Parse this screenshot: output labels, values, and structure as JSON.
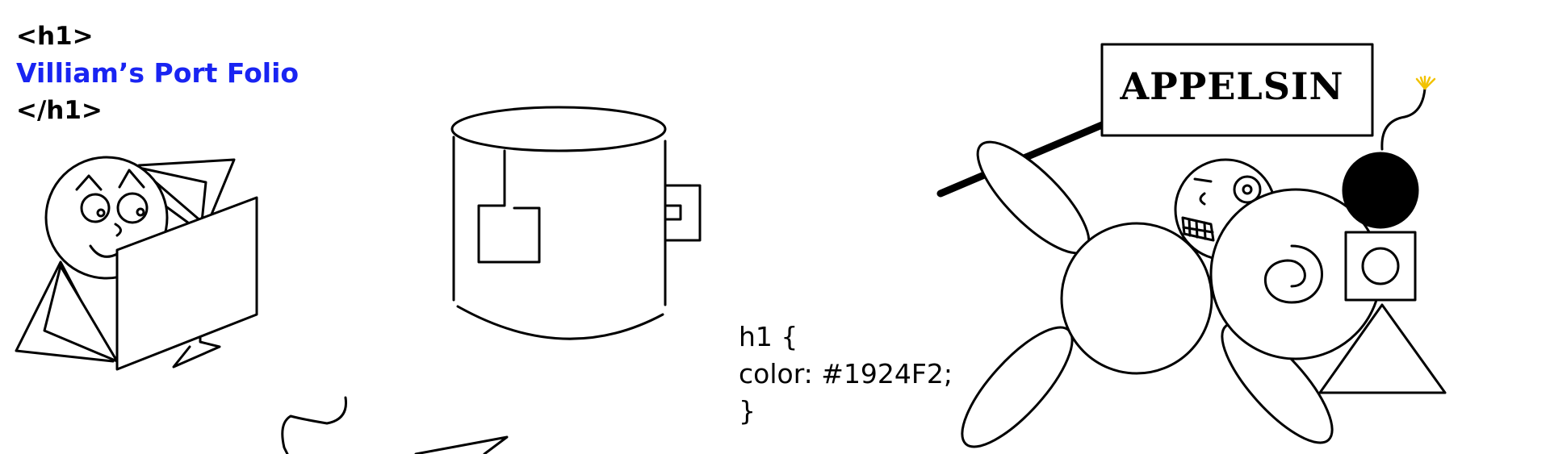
{
  "heading": {
    "open_tag": "<h1>",
    "title": "Villiam’s Port Folio",
    "close_tag": "</h1>"
  },
  "css_snippet": {
    "line1": "h1 {",
    "line2": "color: #1924F2;",
    "line3": "}"
  },
  "sign": {
    "text": "APPELSIN"
  },
  "colors": {
    "title": "#1924F2",
    "ink": "#000000",
    "fuse_spark": "#F2C200"
  },
  "icons": [
    "reading-figure-icon",
    "tea-mug-icon",
    "creature-with-sign-icon",
    "bomb-icon",
    "scribble-icon"
  ]
}
